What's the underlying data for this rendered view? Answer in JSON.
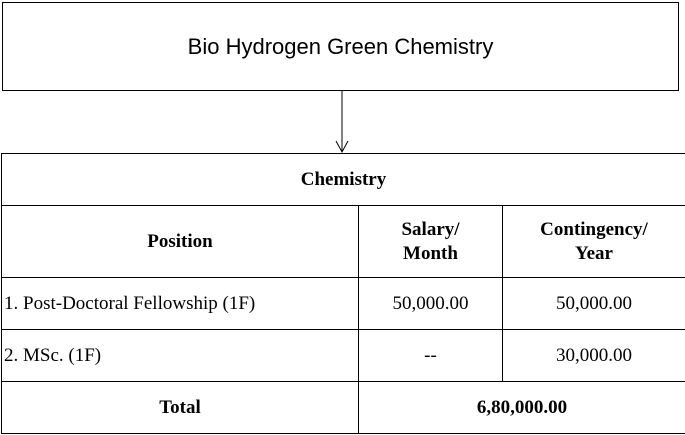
{
  "title": "Bio Hydrogen Green Chemistry",
  "section": "Chemistry",
  "columns": {
    "position": "Position",
    "salary_line1": "Salary/",
    "salary_line2": "Month",
    "contingency_line1": "Contingency/",
    "contingency_line2": "Year"
  },
  "rows": [
    {
      "position": "1. Post-Doctoral Fellowship (1F)",
      "salary": "50,000.00",
      "contingency": "50,000.00"
    },
    {
      "position": "2. MSc. (1F)",
      "salary": "--",
      "contingency": "30,000.00"
    }
  ],
  "total": {
    "label": "Total",
    "value": "6,80,000.00"
  }
}
